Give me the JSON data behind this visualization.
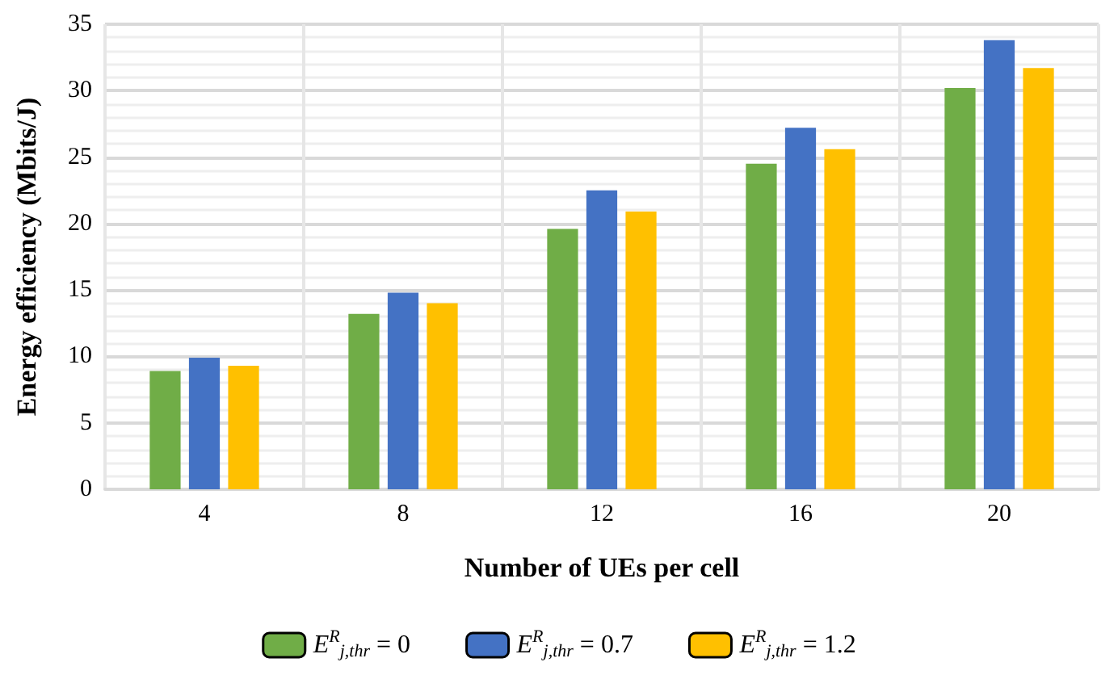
{
  "chart_data": {
    "type": "bar",
    "xlabel": "Number of UEs per cell",
    "ylabel": "Energy efficiency (Mbits/J)",
    "categories": [
      "4",
      "8",
      "12",
      "16",
      "20"
    ],
    "series": [
      {
        "name": "E$^{R}$$_{j,thr}$ = 0",
        "color": "#70ad47",
        "values": [
          8.9,
          13.2,
          19.6,
          24.5,
          30.2
        ]
      },
      {
        "name": "E$^{R}$$_{j,thr}$ = 0.7",
        "color": "#4472c4",
        "values": [
          9.9,
          14.8,
          22.5,
          27.2,
          33.8
        ]
      },
      {
        "name": "E$^{R}$$_{j,thr}$ = 1.2",
        "color": "#ffc000",
        "values": [
          9.3,
          14.0,
          20.9,
          25.6,
          31.7
        ]
      }
    ],
    "ylim": [
      0,
      35
    ],
    "yticks": [
      0,
      5,
      10,
      15,
      20,
      25,
      30,
      35
    ],
    "grid": true,
    "legend": "bottom"
  }
}
